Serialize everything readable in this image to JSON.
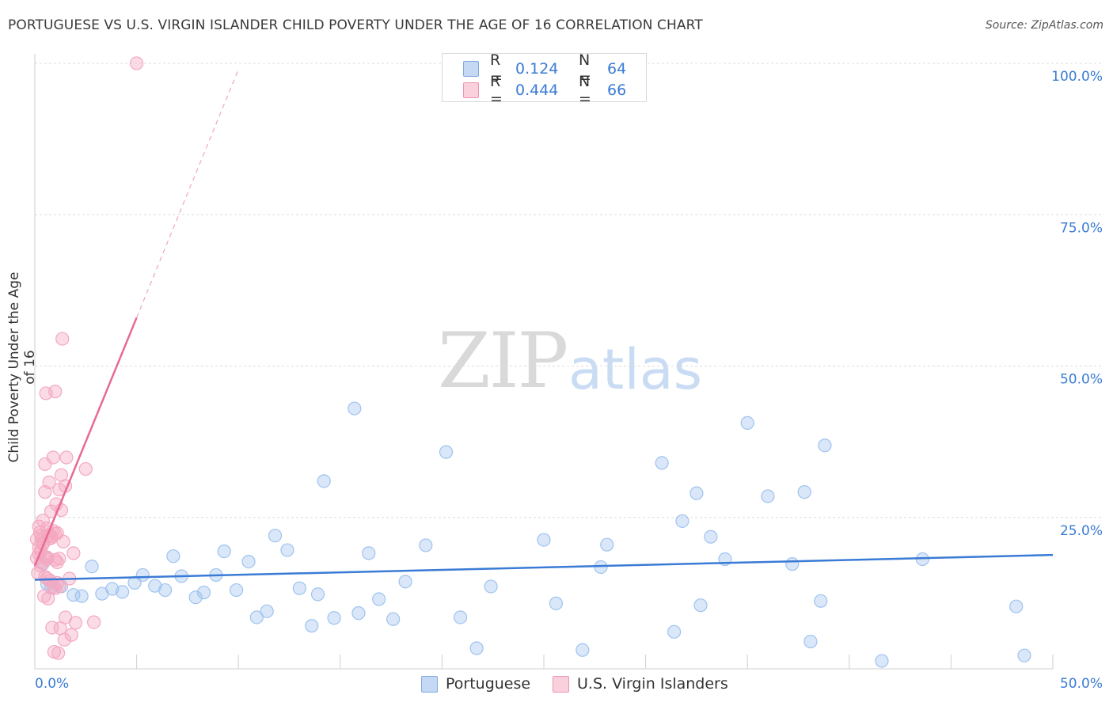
{
  "title": "PORTUGUESE VS U.S. VIRGIN ISLANDER CHILD POVERTY UNDER THE AGE OF 16 CORRELATION CHART",
  "source": "Source: ZipAtlas.com",
  "watermark": {
    "zip": "ZIP",
    "atlas": "atlas"
  },
  "legend": {
    "rows": [
      {
        "r_label": "R =",
        "r_value": "0.124",
        "n_label": "N =",
        "n_value": "64",
        "color": "#9fc3ef"
      },
      {
        "r_label": "R =",
        "r_value": "0.444",
        "n_label": "N =",
        "n_value": "66",
        "color": "#f4a8c0"
      }
    ]
  },
  "bottom_legend": [
    {
      "label": "Portuguese",
      "color": "#9fc3ef"
    },
    {
      "label": "U.S. Virgin Islanders",
      "color": "#f4a8c0"
    }
  ],
  "chart_data": {
    "type": "scatter",
    "title": "PORTUGUESE VS U.S. VIRGIN ISLANDER CHILD POVERTY UNDER THE AGE OF 16 CORRELATION CHART",
    "xlabel": "",
    "ylabel": "Child Poverty Under the Age of 16",
    "xlim": [
      0,
      50
    ],
    "ylim": [
      0,
      100
    ],
    "x_tick_labels": [
      {
        "value": 0,
        "label": "0.0%"
      },
      {
        "value": 50,
        "label": "50.0%"
      }
    ],
    "y_tick_labels": [
      {
        "value": 25,
        "label": "25.0%"
      },
      {
        "value": 50,
        "label": "50.0%"
      },
      {
        "value": 75,
        "label": "75.0%"
      },
      {
        "value": 100,
        "label": "100.0%"
      }
    ],
    "series": [
      {
        "name": "Portuguese",
        "color": "#3a7bd5",
        "fill": "#9fc3ef",
        "trend": {
          "x0": 0,
          "y0": 14.7,
          "x1": 50,
          "y1": 18.8
        },
        "points": [
          [
            0.4,
            17.4
          ],
          [
            0.6,
            14.0
          ],
          [
            0.8,
            13.4
          ],
          [
            1.3,
            13.6
          ],
          [
            1.9,
            12.2
          ],
          [
            2.3,
            12.0
          ],
          [
            2.8,
            16.9
          ],
          [
            3.3,
            12.4
          ],
          [
            3.8,
            13.2
          ],
          [
            4.3,
            12.7
          ],
          [
            4.9,
            14.2
          ],
          [
            5.3,
            15.5
          ],
          [
            5.9,
            13.7
          ],
          [
            6.4,
            13.0
          ],
          [
            6.8,
            18.6
          ],
          [
            7.2,
            15.3
          ],
          [
            7.9,
            11.8
          ],
          [
            8.3,
            12.6
          ],
          [
            8.9,
            15.5
          ],
          [
            9.3,
            19.4
          ],
          [
            9.9,
            13.0
          ],
          [
            10.5,
            17.7
          ],
          [
            10.9,
            8.5
          ],
          [
            11.4,
            9.5
          ],
          [
            11.8,
            22.0
          ],
          [
            12.4,
            19.6
          ],
          [
            13.0,
            13.3
          ],
          [
            13.6,
            7.1
          ],
          [
            13.9,
            12.3
          ],
          [
            14.2,
            31.0
          ],
          [
            14.7,
            8.4
          ],
          [
            15.7,
            43.0
          ],
          [
            15.9,
            9.2
          ],
          [
            16.4,
            19.1
          ],
          [
            16.9,
            11.5
          ],
          [
            17.6,
            8.2
          ],
          [
            18.2,
            14.4
          ],
          [
            19.2,
            20.4
          ],
          [
            20.2,
            35.8
          ],
          [
            20.9,
            8.5
          ],
          [
            21.7,
            3.4
          ],
          [
            22.4,
            13.6
          ],
          [
            25.0,
            21.3
          ],
          [
            25.6,
            10.8
          ],
          [
            26.9,
            3.1
          ],
          [
            27.8,
            16.8
          ],
          [
            28.1,
            20.5
          ],
          [
            30.8,
            34.0
          ],
          [
            31.4,
            6.1
          ],
          [
            31.8,
            24.4
          ],
          [
            32.5,
            29.0
          ],
          [
            32.7,
            10.5
          ],
          [
            33.2,
            21.8
          ],
          [
            33.9,
            18.1
          ],
          [
            35.0,
            40.6
          ],
          [
            36.0,
            28.5
          ],
          [
            37.2,
            17.3
          ],
          [
            37.8,
            29.2
          ],
          [
            38.1,
            4.5
          ],
          [
            38.6,
            11.2
          ],
          [
            38.8,
            36.9
          ],
          [
            41.6,
            1.3
          ],
          [
            43.6,
            18.1
          ],
          [
            48.2,
            10.3
          ],
          [
            48.6,
            2.2
          ]
        ]
      },
      {
        "name": "U.S. Virgin Islanders",
        "color": "#e86a92",
        "fill": "#f4a8c0",
        "trend": {
          "x0": 0,
          "y0": 17.0,
          "x1": 5.0,
          "y1": 58.0,
          "dash_x1": 10.0,
          "dash_y1": 99.0
        },
        "points": [
          [
            0.1,
            18.3
          ],
          [
            0.1,
            21.4
          ],
          [
            0.15,
            15.8
          ],
          [
            0.2,
            23.5
          ],
          [
            0.2,
            19.0
          ],
          [
            0.25,
            22.5
          ],
          [
            0.3,
            17.0
          ],
          [
            0.3,
            22.0
          ],
          [
            0.35,
            21.3
          ],
          [
            0.4,
            24.5
          ],
          [
            0.4,
            20.8
          ],
          [
            0.45,
            12.0
          ],
          [
            0.5,
            18.5
          ],
          [
            0.5,
            29.2
          ],
          [
            0.5,
            33.8
          ],
          [
            0.55,
            45.5
          ],
          [
            0.6,
            18.1
          ],
          [
            0.6,
            23.2
          ],
          [
            0.65,
            11.6
          ],
          [
            0.7,
            21.5
          ],
          [
            0.7,
            30.8
          ],
          [
            0.75,
            14.6
          ],
          [
            0.8,
            26.0
          ],
          [
            0.8,
            21.6
          ],
          [
            0.85,
            6.8
          ],
          [
            0.9,
            22.8
          ],
          [
            0.9,
            34.9
          ],
          [
            0.95,
            2.8
          ],
          [
            1.0,
            45.8
          ],
          [
            1.0,
            13.3
          ],
          [
            1.0,
            18.0
          ],
          [
            1.05,
            27.2
          ],
          [
            1.1,
            22.4
          ],
          [
            1.1,
            14.2
          ],
          [
            1.15,
            2.6
          ],
          [
            1.2,
            18.2
          ],
          [
            1.2,
            29.6
          ],
          [
            1.25,
            6.7
          ],
          [
            1.3,
            32.0
          ],
          [
            1.35,
            54.5
          ],
          [
            1.4,
            21.0
          ],
          [
            1.45,
            4.8
          ],
          [
            1.5,
            8.5
          ],
          [
            1.5,
            30.2
          ],
          [
            1.55,
            34.9
          ],
          [
            1.7,
            14.9
          ],
          [
            1.8,
            5.6
          ],
          [
            1.9,
            19.1
          ],
          [
            2.0,
            7.6
          ],
          [
            2.5,
            33.0
          ],
          [
            2.9,
            7.7
          ],
          [
            5.0,
            100.0
          ],
          [
            0.3,
            17.6
          ],
          [
            0.6,
            14.9
          ],
          [
            0.9,
            13.6
          ],
          [
            1.1,
            17.6
          ],
          [
            1.3,
            26.2
          ],
          [
            0.4,
            20.6
          ],
          [
            0.7,
            22.1
          ],
          [
            0.2,
            20.1
          ],
          [
            0.8,
            21.9
          ],
          [
            1.0,
            22.3
          ],
          [
            0.5,
            15.2
          ],
          [
            0.3,
            19.5
          ],
          [
            1.2,
            13.6
          ],
          [
            0.6,
            18.4
          ]
        ]
      }
    ]
  }
}
